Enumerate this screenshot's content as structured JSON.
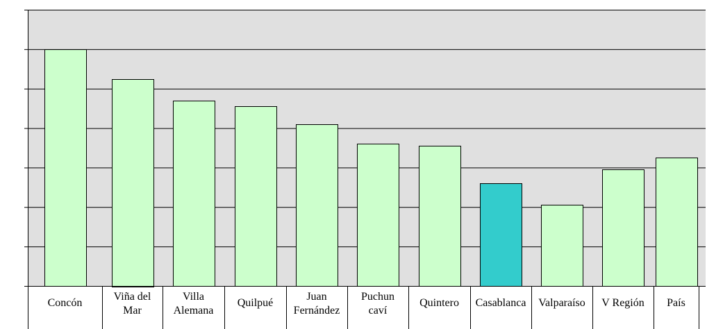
{
  "chart_data": {
    "type": "bar",
    "title": "",
    "xlabel": "",
    "ylabel": "",
    "categories": [
      "Concón",
      "Viña del Mar",
      "Villa Alemana",
      "Quilpué",
      "Juan Fernández",
      "Puchuncaví",
      "Quintero",
      "Casablanca",
      "Valparaíso",
      "V Región",
      "País"
    ],
    "category_label_lines": [
      [
        "Concón"
      ],
      [
        "Viña del",
        "Mar"
      ],
      [
        "Villa",
        "Alemana"
      ],
      [
        "Quilpué"
      ],
      [
        "Juan",
        "Fernández"
      ],
      [
        "Puchun",
        "caví"
      ],
      [
        "Quintero"
      ],
      [
        "Casablanca"
      ],
      [
        "Valparaíso"
      ],
      [
        "V Región"
      ],
      [
        "País"
      ]
    ],
    "values": [
      6.0,
      5.25,
      4.7,
      4.55,
      4.1,
      3.6,
      3.55,
      2.6,
      2.05,
      2.95,
      3.25
    ],
    "ylim": [
      0,
      7
    ],
    "y_gridlines": 7,
    "grid": true,
    "legend": "none",
    "colors": {
      "bar": "#ccffcc",
      "highlight_bar": "#33cccc",
      "highlight_category": "Casablanca",
      "plot_background": "#e0e0e0",
      "gridline": "#000000"
    }
  }
}
